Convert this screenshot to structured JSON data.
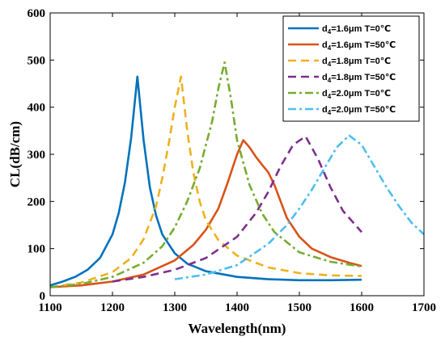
{
  "chart_data": {
    "type": "line",
    "xlabel": "Wavelength(nm)",
    "ylabel": "CL(dB/cm)",
    "xlim": [
      1100,
      1700
    ],
    "ylim": [
      0,
      600
    ],
    "xticks": [
      1100,
      1200,
      1300,
      1400,
      1500,
      1600,
      1700
    ],
    "yticks": [
      0,
      100,
      200,
      300,
      400,
      500,
      600
    ],
    "grid": false,
    "legend_position": "top-right",
    "series": [
      {
        "name_main": "d",
        "name_sub": "4",
        "name_rest": "=1.6μm T=0℃",
        "color": "#0072BD",
        "dash": "solid",
        "x": [
          1100,
          1120,
          1140,
          1160,
          1180,
          1200,
          1210,
          1220,
          1230,
          1240,
          1250,
          1260,
          1270,
          1280,
          1300,
          1320,
          1350,
          1400,
          1450,
          1500,
          1550,
          1600
        ],
        "y": [
          22,
          30,
          40,
          55,
          80,
          130,
          175,
          240,
          335,
          465,
          330,
          230,
          170,
          130,
          90,
          68,
          52,
          40,
          35,
          33,
          33,
          34
        ]
      },
      {
        "name_main": "d",
        "name_sub": "4",
        "name_rest": "=1.6μm T=50℃",
        "color": "#D95319",
        "dash": "solid",
        "x": [
          1100,
          1150,
          1200,
          1250,
          1300,
          1330,
          1350,
          1370,
          1385,
          1400,
          1410,
          1420,
          1430,
          1440,
          1450,
          1460,
          1470,
          1480,
          1500,
          1520,
          1550,
          1580,
          1600
        ],
        "y": [
          18,
          22,
          30,
          45,
          75,
          108,
          140,
          185,
          240,
          300,
          330,
          315,
          295,
          278,
          262,
          235,
          200,
          165,
          125,
          100,
          82,
          70,
          63
        ]
      },
      {
        "name_main": "d",
        "name_sub": "4",
        "name_rest": "=1.8μm T=0℃",
        "color": "#EDB120",
        "dash": "dash",
        "x": [
          1100,
          1150,
          1200,
          1230,
          1250,
          1270,
          1280,
          1290,
          1300,
          1310,
          1320,
          1330,
          1340,
          1350,
          1370,
          1400,
          1450,
          1500,
          1550,
          1600
        ],
        "y": [
          18,
          28,
          50,
          80,
          120,
          190,
          250,
          320,
          400,
          465,
          350,
          260,
          200,
          160,
          118,
          85,
          60,
          48,
          43,
          42
        ]
      },
      {
        "name_main": "d",
        "name_sub": "4",
        "name_rest": "=1.8μm T=50℃",
        "color": "#7E2F8E",
        "dash": "dash",
        "x": [
          1200,
          1250,
          1300,
          1350,
          1400,
          1430,
          1450,
          1470,
          1490,
          1510,
          1530,
          1550,
          1570,
          1600
        ],
        "y": [
          30,
          40,
          55,
          80,
          125,
          175,
          220,
          275,
          320,
          338,
          290,
          230,
          180,
          135
        ]
      },
      {
        "name_main": "d",
        "name_sub": "4",
        "name_rest": "=2.0μm T=0℃",
        "color": "#77AC30",
        "dash": "dashdot",
        "x": [
          1100,
          1150,
          1200,
          1250,
          1280,
          1300,
          1320,
          1340,
          1360,
          1370,
          1380,
          1390,
          1400,
          1420,
          1440,
          1460,
          1500,
          1550,
          1600
        ],
        "y": [
          18,
          25,
          40,
          70,
          105,
          145,
          200,
          270,
          370,
          440,
          495,
          420,
          330,
          235,
          175,
          135,
          92,
          72,
          62
        ]
      },
      {
        "name_main": "d",
        "name_sub": "4",
        "name_rest": "=2.0μm T=50℃",
        "color": "#4DBEEE",
        "dash": "dashdot",
        "x": [
          1300,
          1350,
          1400,
          1450,
          1480,
          1500,
          1520,
          1540,
          1560,
          1580,
          1600,
          1620,
          1640,
          1660,
          1680,
          1700
        ],
        "y": [
          35,
          45,
          65,
          110,
          150,
          185,
          225,
          270,
          315,
          340,
          320,
          275,
          230,
          190,
          155,
          130
        ]
      }
    ]
  }
}
